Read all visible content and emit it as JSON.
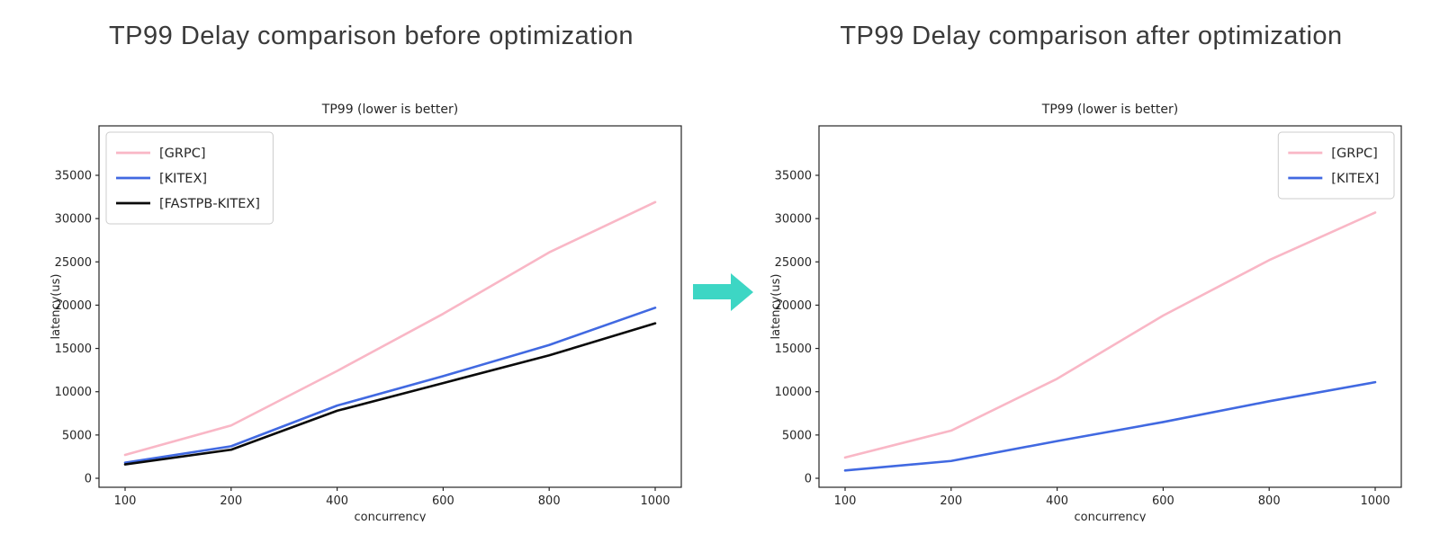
{
  "page": {
    "background": "#ffffff"
  },
  "arrow": {
    "direction": "right",
    "color": "#3DD6C4"
  },
  "chart_data": [
    {
      "type": "line",
      "heading": "TP99 Delay comparison before optimization",
      "title": "TP99 (lower is better)",
      "xlabel": "concurrency",
      "ylabel": "latency(us)",
      "categories": [
        "100",
        "200",
        "400",
        "600",
        "800",
        "1000"
      ],
      "x_axis_style": "categorical-equal-spacing",
      "ylim": [
        0,
        37500
      ],
      "yticks": [
        0,
        5000,
        10000,
        15000,
        20000,
        25000,
        30000,
        35000
      ],
      "grid": false,
      "legend_position": "upper-left",
      "series": [
        {
          "name": "[GRPC]",
          "color": "#F9B7C6",
          "values": [
            2700,
            6100,
            12400,
            19000,
            26100,
            31900
          ]
        },
        {
          "name": "[KITEX]",
          "color": "#4169E1",
          "values": [
            1800,
            3700,
            8400,
            11800,
            15400,
            19700
          ]
        },
        {
          "name": "[FASTPB-KITEX]",
          "color": "#0A0A0A",
          "values": [
            1600,
            3300,
            7800,
            11000,
            14200,
            17900
          ]
        }
      ]
    },
    {
      "type": "line",
      "heading": "TP99 Delay comparison after optimization",
      "title": "TP99 (lower is better)",
      "xlabel": "concurrency",
      "ylabel": "latency(us)",
      "categories": [
        "100",
        "200",
        "400",
        "600",
        "800",
        "1000"
      ],
      "x_axis_style": "categorical-equal-spacing",
      "ylim": [
        0,
        37500
      ],
      "yticks": [
        0,
        5000,
        10000,
        15000,
        20000,
        25000,
        30000,
        35000
      ],
      "grid": false,
      "legend_position": "upper-right",
      "series": [
        {
          "name": "[GRPC]",
          "color": "#F9B7C6",
          "values": [
            2400,
            5500,
            11500,
            18800,
            25200,
            30700
          ]
        },
        {
          "name": "[KITEX]",
          "color": "#4169E1",
          "values": [
            900,
            2000,
            4300,
            6500,
            8900,
            11100
          ]
        }
      ]
    }
  ]
}
